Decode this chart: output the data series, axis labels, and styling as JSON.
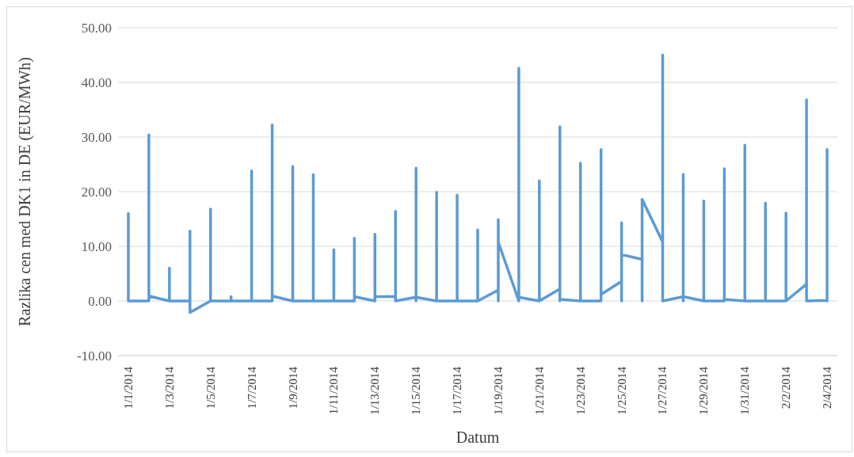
{
  "chart_data": {
    "type": "line",
    "xlabel": "Datum",
    "ylabel": "Razlika cen med DK1 in DE (EUR/MWh)",
    "xlim": [
      "2013-12-31T12:00",
      "2014-02-04T12:00"
    ],
    "xticks": [
      {
        "value": "2014-01-01",
        "label": "1/1/2014"
      },
      {
        "value": "2014-01-03",
        "label": "1/3/2014"
      },
      {
        "value": "2014-01-05",
        "label": "1/5/2014"
      },
      {
        "value": "2014-01-07",
        "label": "1/7/2014"
      },
      {
        "value": "2014-01-09",
        "label": "1/9/2014"
      },
      {
        "value": "2014-01-11",
        "label": "1/11/2014"
      },
      {
        "value": "2014-01-13",
        "label": "1/13/2014"
      },
      {
        "value": "2014-01-15",
        "label": "1/15/2014"
      },
      {
        "value": "2014-01-17",
        "label": "1/17/2014"
      },
      {
        "value": "2014-01-19",
        "label": "1/19/2014"
      },
      {
        "value": "2014-01-21",
        "label": "1/21/2014"
      },
      {
        "value": "2014-01-23",
        "label": "1/23/2014"
      },
      {
        "value": "2014-01-25",
        "label": "1/25/2014"
      },
      {
        "value": "2014-01-27",
        "label": "1/27/2014"
      },
      {
        "value": "2014-01-29",
        "label": "1/29/2014"
      },
      {
        "value": "2014-01-31",
        "label": "1/31/2014"
      },
      {
        "value": "2014-02-02",
        "label": "2/2/2014"
      },
      {
        "value": "2014-02-04",
        "label": "2/4/2014"
      }
    ],
    "ylim": [
      -10,
      50
    ],
    "yticks": [
      {
        "value": -10,
        "label": "-10.00"
      },
      {
        "value": 0,
        "label": "0.00"
      },
      {
        "value": 10,
        "label": "10.00"
      },
      {
        "value": 20,
        "label": "20.00"
      },
      {
        "value": 30,
        "label": "30.00"
      },
      {
        "value": 40,
        "label": "40.00"
      },
      {
        "value": 50,
        "label": "50.00"
      }
    ],
    "grid": "y",
    "marker": "none",
    "line_style": "solid",
    "series": [
      {
        "color": "#5b9bd5",
        "x": [
          "2014-01-01",
          "2014-01-01",
          "2014-01-01",
          "2014-01-02",
          "2014-01-02",
          "2014-01-02",
          "2014-01-02",
          "2014-01-03",
          "2014-01-03",
          "2014-01-03",
          "2014-01-04",
          "2014-01-04",
          "2014-01-04",
          "2014-01-05",
          "2014-01-05",
          "2014-01-05",
          "2014-01-06",
          "2014-01-06",
          "2014-01-06",
          "2014-01-07",
          "2014-01-07",
          "2014-01-07",
          "2014-01-08",
          "2014-01-08",
          "2014-01-08",
          "2014-01-08",
          "2014-01-09",
          "2014-01-09",
          "2014-01-09",
          "2014-01-10",
          "2014-01-10",
          "2014-01-10",
          "2014-01-11",
          "2014-01-11",
          "2014-01-11",
          "2014-01-12",
          "2014-01-12",
          "2014-01-12",
          "2014-01-12",
          "2014-01-13",
          "2014-01-13",
          "2014-01-13",
          "2014-01-13",
          "2014-01-14",
          "2014-01-14",
          "2014-01-14",
          "2014-01-15",
          "2014-01-15",
          "2014-01-15",
          "2014-01-15",
          "2014-01-16",
          "2014-01-16",
          "2014-01-16",
          "2014-01-17",
          "2014-01-17",
          "2014-01-17",
          "2014-01-18",
          "2014-01-18",
          "2014-01-18",
          "2014-01-19",
          "2014-01-19",
          "2014-01-19",
          "2014-01-19",
          "2014-01-20",
          "2014-01-20",
          "2014-01-20",
          "2014-01-20",
          "2014-01-21",
          "2014-01-21",
          "2014-01-21",
          "2014-01-22",
          "2014-01-22",
          "2014-01-22",
          "2014-01-22",
          "2014-01-23",
          "2014-01-23",
          "2014-01-23",
          "2014-01-24",
          "2014-01-24",
          "2014-01-24",
          "2014-01-24",
          "2014-01-25",
          "2014-01-25",
          "2014-01-25",
          "2014-01-25",
          "2014-01-26",
          "2014-01-26",
          "2014-01-26",
          "2014-01-27",
          "2014-01-27",
          "2014-01-27",
          "2014-01-28",
          "2014-01-28",
          "2014-01-28",
          "2014-01-28",
          "2014-01-29",
          "2014-01-29",
          "2014-01-29",
          "2014-01-30",
          "2014-01-30",
          "2014-01-30",
          "2014-01-30",
          "2014-01-31",
          "2014-01-31",
          "2014-01-31",
          "2014-02-01",
          "2014-02-01",
          "2014-02-01",
          "2014-02-02",
          "2014-02-02",
          "2014-02-02",
          "2014-02-03",
          "2014-02-03",
          "2014-02-03",
          "2014-02-04",
          "2014-02-04",
          "2014-02-04"
        ],
        "values": [
          0,
          16.0,
          0,
          0,
          30.4,
          0,
          0.9,
          0,
          6.0,
          0,
          0,
          12.8,
          -2.1,
          0,
          16.8,
          0,
          0,
          0.8,
          0,
          0,
          23.8,
          0,
          0,
          32.2,
          0,
          0.9,
          0,
          24.6,
          0,
          0,
          23.1,
          0,
          0,
          9.4,
          0,
          0,
          11.5,
          0,
          0.8,
          0,
          12.2,
          0,
          0.8,
          0.8,
          16.4,
          0,
          0.7,
          24.3,
          0,
          0.7,
          0,
          19.9,
          0,
          0,
          19.4,
          0,
          0,
          13.0,
          0,
          2.0,
          14.9,
          0,
          10.8,
          0,
          42.6,
          0,
          0.7,
          0,
          22.0,
          0,
          2.2,
          31.9,
          0,
          0.3,
          0,
          25.2,
          0,
          0,
          27.7,
          0,
          1.2,
          3.6,
          14.3,
          0,
          8.5,
          7.6,
          0,
          18.6,
          10.8,
          45.0,
          0,
          0.8,
          23.2,
          0,
          0.8,
          0,
          18.3,
          0,
          0,
          24.2,
          0,
          0.3,
          0,
          28.5,
          0,
          0,
          17.9,
          0,
          0,
          16.1,
          0,
          3.1,
          36.8,
          0,
          0.1,
          27.7,
          0
        ]
      }
    ]
  }
}
